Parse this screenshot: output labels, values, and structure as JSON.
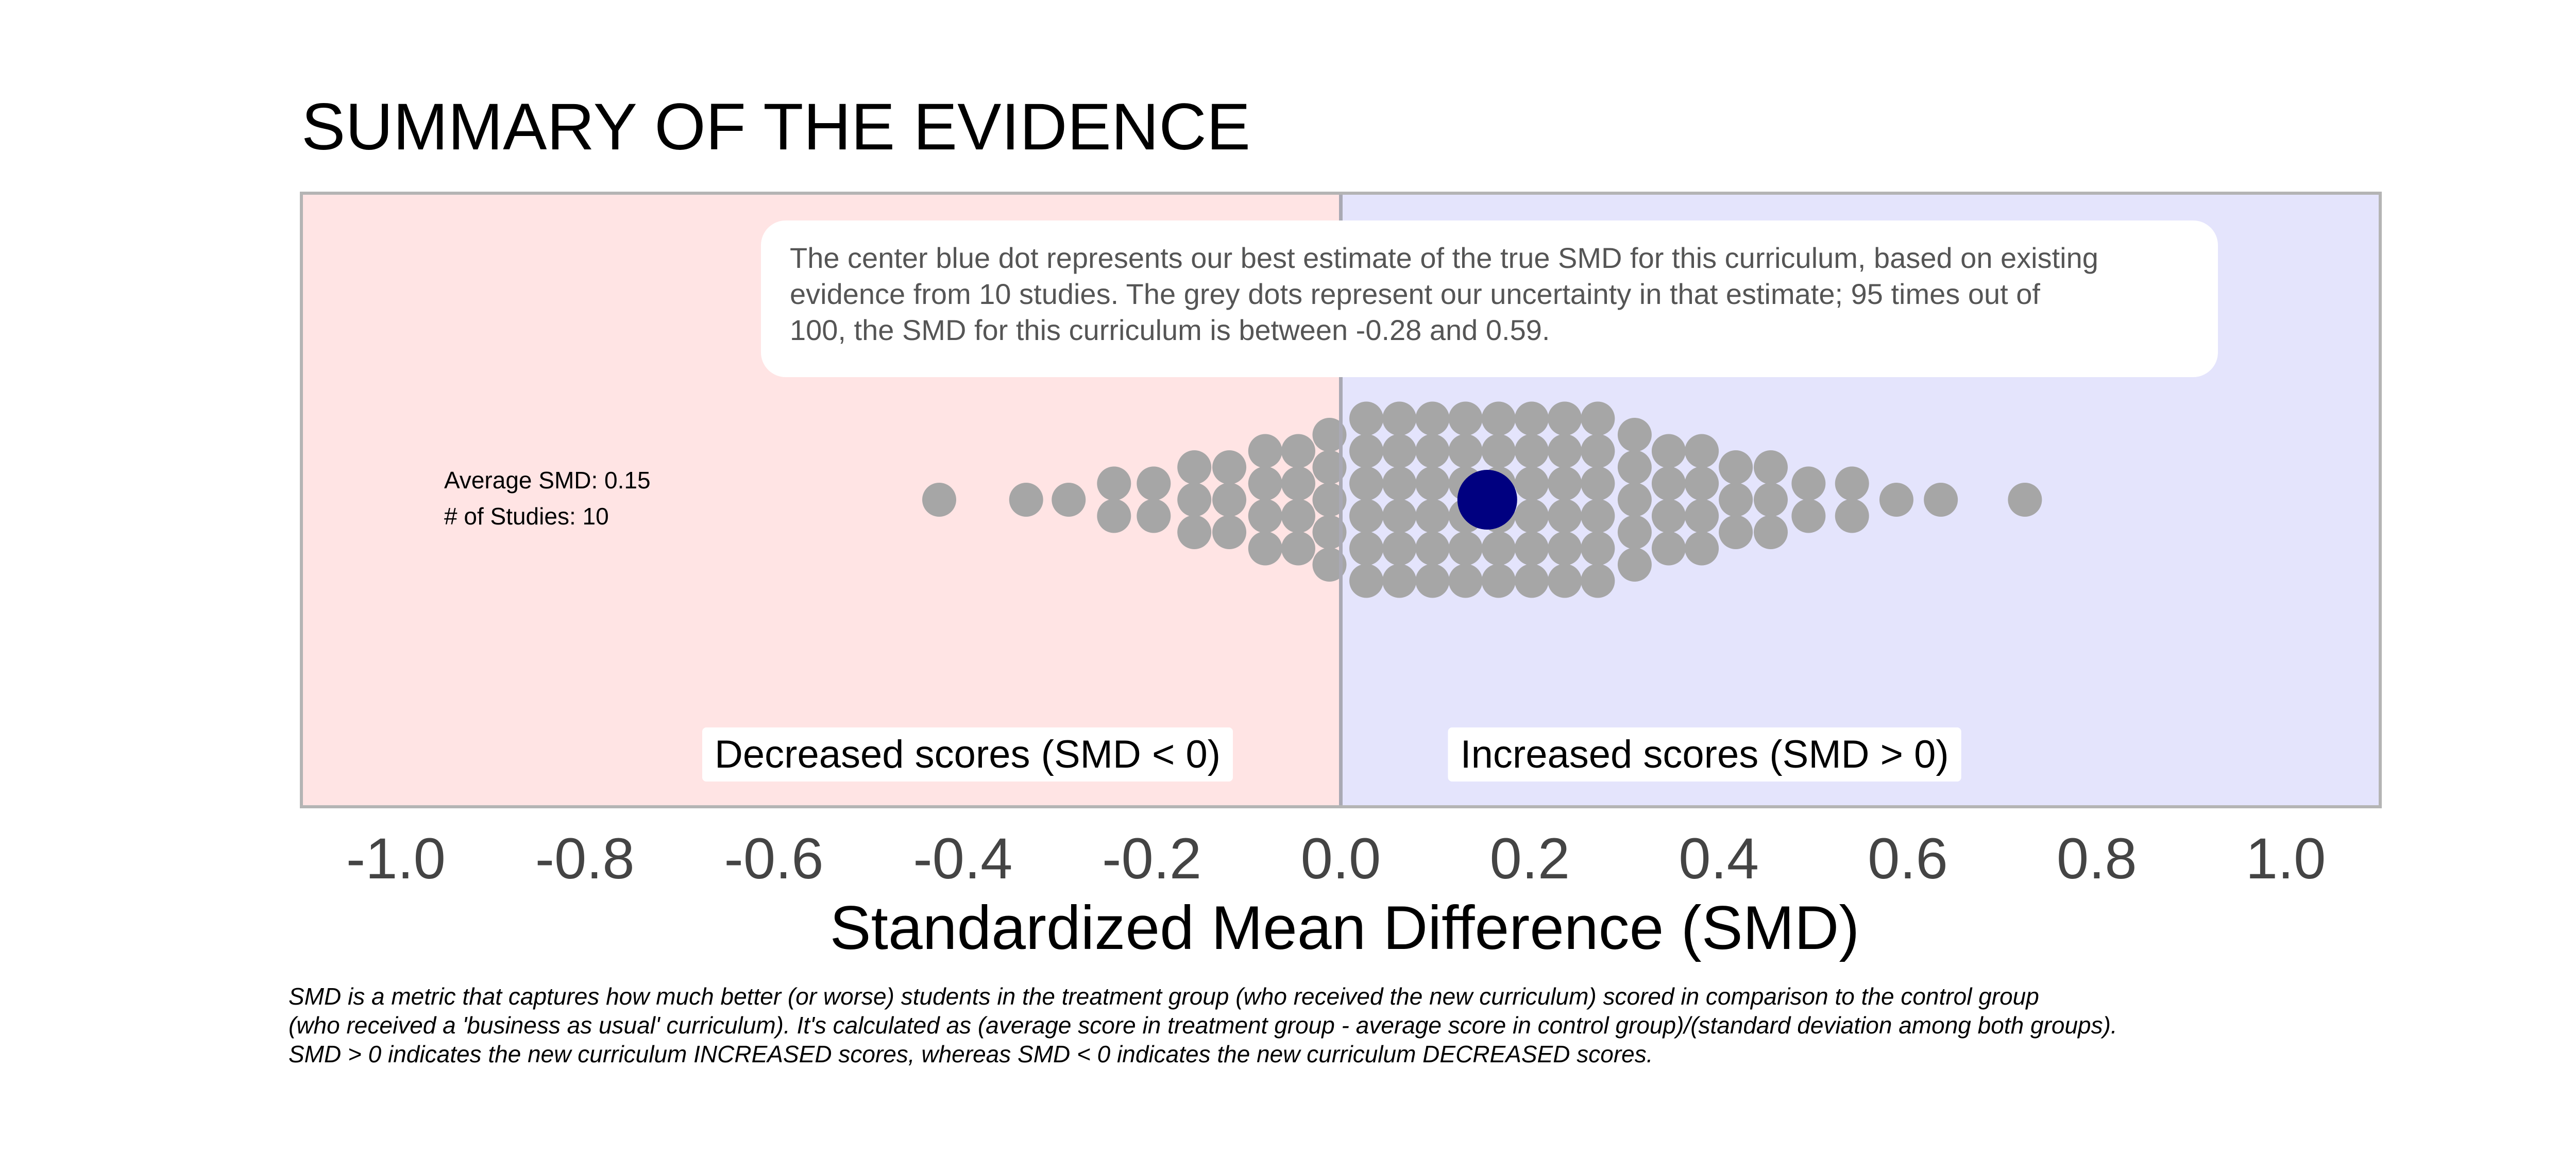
{
  "chart_data": {
    "type": "scatter",
    "title": "SUMMARY OF THE EVIDENCE",
    "xlabel": "Standardized Mean Difference (SMD)",
    "xlim": [
      -1.1,
      1.1
    ],
    "xticks": [
      "-1.0",
      "-0.8",
      "-0.6",
      "-0.4",
      "-0.2",
      "0.0",
      "0.2",
      "0.4",
      "0.6",
      "0.8",
      "1.0"
    ],
    "xtick_values": [
      -1.0,
      -0.8,
      -0.6,
      -0.4,
      -0.2,
      0.0,
      0.2,
      0.4,
      0.6,
      0.8,
      1.0
    ],
    "grid": false,
    "estimate": {
      "x": 0.155,
      "color": "#000080"
    },
    "dot_color": "#a6a6a6",
    "regions": [
      {
        "label": "Decreased scores (SMD < 0)",
        "range": [
          -1.1,
          0.0
        ],
        "color": "#ffe4e4"
      },
      {
        "label": "Increased scores (SMD > 0)",
        "range": [
          0.0,
          1.1
        ],
        "color": "#e4e4fc"
      }
    ],
    "stats": {
      "average_line": "Average SMD:  0.15",
      "studies_line": "# of Studies:  10"
    },
    "annotation_lines": [
      "The center blue dot represents our best estimate of the true SMD for this curriculum, based on existing",
      "evidence from 10 studies. The grey dots represent our uncertainty in that estimate; 95 times out of",
      "100, the SMD for this curriculum is between -0.28 and 0.59."
    ],
    "dot_columns": [
      {
        "x": -0.425,
        "count": 1
      },
      {
        "x": -0.333,
        "count": 1
      },
      {
        "x": -0.288,
        "count": 1
      },
      {
        "x": -0.24,
        "count": 2
      },
      {
        "x": -0.198,
        "count": 2
      },
      {
        "x": -0.155,
        "count": 3
      },
      {
        "x": -0.118,
        "count": 3
      },
      {
        "x": -0.08,
        "count": 4
      },
      {
        "x": -0.045,
        "count": 4
      },
      {
        "x": -0.012,
        "count": 5
      },
      {
        "x": 0.027,
        "count": 6
      },
      {
        "x": 0.062,
        "count": 6
      },
      {
        "x": 0.097,
        "count": 6
      },
      {
        "x": 0.132,
        "count": 6
      },
      {
        "x": 0.167,
        "count": 6
      },
      {
        "x": 0.202,
        "count": 6
      },
      {
        "x": 0.237,
        "count": 6
      },
      {
        "x": 0.272,
        "count": 6
      },
      {
        "x": 0.311,
        "count": 5
      },
      {
        "x": 0.347,
        "count": 4
      },
      {
        "x": 0.382,
        "count": 4
      },
      {
        "x": 0.418,
        "count": 3
      },
      {
        "x": 0.455,
        "count": 3
      },
      {
        "x": 0.495,
        "count": 2
      },
      {
        "x": 0.541,
        "count": 2
      },
      {
        "x": 0.588,
        "count": 1
      },
      {
        "x": 0.635,
        "count": 1
      },
      {
        "x": 0.724,
        "count": 1
      }
    ]
  },
  "footnote_lines": [
    "SMD is a metric that captures how much better (or worse) students in the treatment group (who received the new curriculum) scored in comparison to the control group",
    "(who received a 'business as usual' curriculum). It's calculated as (average score in treatment group - average score in control group)/(standard deviation among both groups).",
    "SMD > 0 indicates the new curriculum INCREASED scores, whereas SMD < 0 indicates the new curriculum DECREASED scores."
  ]
}
